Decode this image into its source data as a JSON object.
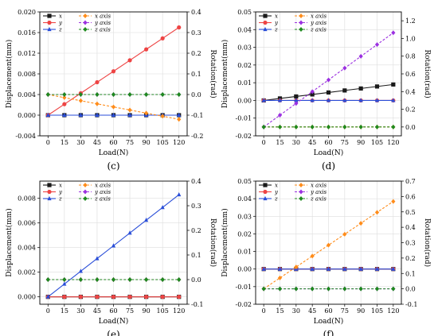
{
  "figure": {
    "panels": [
      "c",
      "d",
      "e",
      "f"
    ]
  },
  "legend": {
    "solid": [
      "x",
      "y",
      "z"
    ],
    "dashed": [
      "x axis",
      "y axis",
      "z axis"
    ],
    "colors": {
      "x": "#1a1a1a",
      "y": "#ee4444",
      "z": "#2a4ed8",
      "xr": "#ff8c1a",
      "yr": "#9b30e0",
      "zr": "#1e8a1e"
    },
    "markers": {
      "x": "square",
      "y": "circle",
      "z": "triangle",
      "xr": "diamond",
      "yr": "diamond",
      "zr": "diamond"
    }
  },
  "chart_data": [
    {
      "type": "line",
      "label": "(c)",
      "x": [
        0,
        15,
        30,
        45,
        60,
        75,
        90,
        105,
        120
      ],
      "xlabel": "Load(N)",
      "ylabel": "Displacement(mm)",
      "y2label": "Rotation(rad)",
      "ylim": [
        -0.004,
        0.02
      ],
      "yticks": [
        "-0.004",
        "0.000",
        "0.004",
        "0.008",
        "0.012",
        "0.016",
        "0.020"
      ],
      "y2lim": [
        -0.2,
        0.4
      ],
      "y2ticks": [
        "-0.2",
        "-0.1",
        "0.0",
        "0.1",
        "0.2",
        "0.3",
        "0.4"
      ],
      "grid": true,
      "series": [
        {
          "name": "x",
          "axis": "left",
          "style": "solid",
          "key": "x",
          "values": [
            0,
            0,
            0,
            0,
            0,
            0,
            0,
            0,
            0
          ]
        },
        {
          "name": "y",
          "axis": "left",
          "style": "solid",
          "key": "y",
          "values": [
            0,
            0.00213,
            0.00425,
            0.00638,
            0.0085,
            0.01063,
            0.01275,
            0.01488,
            0.017
          ]
        },
        {
          "name": "z",
          "axis": "left",
          "style": "solid",
          "key": "z",
          "values": [
            0,
            0,
            0,
            0,
            0,
            0,
            0,
            0,
            0
          ]
        },
        {
          "name": "x axis",
          "axis": "right",
          "style": "dashed",
          "key": "xr",
          "values": [
            0,
            -0.015,
            -0.03,
            -0.045,
            -0.06,
            -0.075,
            -0.09,
            -0.105,
            -0.12
          ]
        },
        {
          "name": "y axis",
          "axis": "right",
          "style": "dashed",
          "key": "yr",
          "values": [
            0,
            0,
            0,
            0,
            0,
            0,
            0,
            0,
            0
          ]
        },
        {
          "name": "z axis",
          "axis": "right",
          "style": "dashed",
          "key": "zr",
          "values": [
            0,
            0,
            0,
            0,
            0,
            0,
            0,
            0,
            0
          ]
        }
      ]
    },
    {
      "type": "line",
      "label": "(d)",
      "x": [
        0,
        15,
        30,
        45,
        60,
        75,
        90,
        105,
        120
      ],
      "xlabel": "Load(N)",
      "ylabel": "Displacement(mm)",
      "y2label": "Rotation(rad)",
      "ylim": [
        -0.02,
        0.05
      ],
      "yticks": [
        "-0.02",
        "-0.01",
        "0.00",
        "0.01",
        "0.02",
        "0.03",
        "0.04",
        "0.05"
      ],
      "y2lim": [
        -0.1,
        1.3
      ],
      "y2ticks": [
        "0.0",
        "0.2",
        "0.4",
        "0.6",
        "0.8",
        "1.0",
        "1.2"
      ],
      "grid": true,
      "series": [
        {
          "name": "x",
          "axis": "left",
          "style": "solid",
          "key": "x",
          "values": [
            0,
            0.00113,
            0.00225,
            0.00338,
            0.0045,
            0.00563,
            0.00675,
            0.00788,
            0.009
          ]
        },
        {
          "name": "y",
          "axis": "left",
          "style": "solid",
          "key": "y",
          "values": [
            0,
            0,
            0,
            0,
            0,
            0,
            0,
            0,
            0
          ]
        },
        {
          "name": "z",
          "axis": "left",
          "style": "solid",
          "key": "z",
          "values": [
            0,
            0,
            0,
            0,
            0,
            0,
            0,
            0,
            0
          ]
        },
        {
          "name": "x axis",
          "axis": "right",
          "style": "dashed",
          "key": "xr",
          "values": [
            0,
            0,
            0,
            0,
            0,
            0,
            0,
            0,
            0
          ]
        },
        {
          "name": "y axis",
          "axis": "right",
          "style": "dashed",
          "key": "yr",
          "values": [
            0,
            0.133,
            0.266,
            0.399,
            0.532,
            0.665,
            0.798,
            0.931,
            1.064
          ]
        },
        {
          "name": "z axis",
          "axis": "right",
          "style": "dashed",
          "key": "zr",
          "values": [
            0,
            0,
            0,
            0,
            0,
            0,
            0,
            0,
            0
          ]
        }
      ]
    },
    {
      "type": "line",
      "label": "(e)",
      "x": [
        0,
        15,
        30,
        45,
        60,
        75,
        90,
        105,
        120
      ],
      "xlabel": "Load(N)",
      "ylabel": "Displacement(mm)",
      "y2label": "Rotation(rad)",
      "ylim": [
        -0.0006,
        0.0094
      ],
      "yticks": [
        "0.000",
        "0.002",
        "0.004",
        "0.006",
        "0.008"
      ],
      "ytickvals": [
        0,
        0.002,
        0.004,
        0.006,
        0.008
      ],
      "y2lim": [
        -0.1,
        0.4
      ],
      "y2ticks": [
        "-0.1",
        "0.0",
        "0.1",
        "0.2",
        "0.3",
        "0.4"
      ],
      "grid": true,
      "series": [
        {
          "name": "x",
          "axis": "left",
          "style": "solid",
          "key": "x",
          "values": [
            0,
            0,
            0,
            0,
            0,
            0,
            0,
            0,
            0
          ]
        },
        {
          "name": "y",
          "axis": "left",
          "style": "solid",
          "key": "y",
          "values": [
            0,
            0,
            0,
            0,
            0,
            0,
            0,
            0,
            0
          ]
        },
        {
          "name": "z",
          "axis": "left",
          "style": "solid",
          "key": "z",
          "values": [
            0,
            0.00104,
            0.00208,
            0.00311,
            0.00415,
            0.00519,
            0.00623,
            0.00726,
            0.0083
          ]
        },
        {
          "name": "x axis",
          "axis": "right",
          "style": "dashed",
          "key": "xr",
          "values": [
            0,
            0,
            0,
            0,
            0,
            0,
            0,
            0,
            0
          ]
        },
        {
          "name": "y axis",
          "axis": "right",
          "style": "dashed",
          "key": "yr",
          "values": [
            0,
            0,
            0,
            0,
            0,
            0,
            0,
            0,
            0
          ]
        },
        {
          "name": "z axis",
          "axis": "right",
          "style": "dashed",
          "key": "zr",
          "values": [
            0,
            0,
            0,
            0,
            0,
            0,
            0,
            0,
            0
          ]
        }
      ]
    },
    {
      "type": "line",
      "label": "(f)",
      "x": [
        0,
        15,
        30,
        45,
        60,
        75,
        90,
        105,
        120
      ],
      "xlabel": "Load(N)",
      "ylabel": "Displacement(mm)",
      "y2label": "Rotation(rad)",
      "ylim": [
        -0.02,
        0.05
      ],
      "yticks": [
        "-0.02",
        "-0.01",
        "0.00",
        "0.01",
        "0.02",
        "0.03",
        "0.04",
        "0.05"
      ],
      "y2lim": [
        -0.1,
        0.7
      ],
      "y2ticks": [
        "-0.1",
        "0.0",
        "0.1",
        "0.2",
        "0.3",
        "0.4",
        "0.5",
        "0.6",
        "0.7"
      ],
      "grid": true,
      "series": [
        {
          "name": "x",
          "axis": "left",
          "style": "solid",
          "key": "x",
          "values": [
            0,
            0,
            0,
            0,
            0,
            0,
            0,
            0,
            0
          ]
        },
        {
          "name": "y",
          "axis": "left",
          "style": "solid",
          "key": "y",
          "values": [
            0,
            0,
            0,
            0,
            0,
            0,
            0,
            0,
            0
          ]
        },
        {
          "name": "z",
          "axis": "left",
          "style": "solid",
          "key": "z",
          "values": [
            0,
            0,
            0,
            0,
            0,
            0,
            0,
            0,
            0
          ]
        },
        {
          "name": "x axis",
          "axis": "right",
          "style": "dashed",
          "key": "xr",
          "values": [
            0,
            0.071,
            0.142,
            0.213,
            0.284,
            0.355,
            0.426,
            0.497,
            0.568
          ]
        },
        {
          "name": "y axis",
          "axis": "right",
          "style": "dashed",
          "key": "yr",
          "values": [
            0,
            0,
            0,
            0,
            0,
            0,
            0,
            0,
            0
          ]
        },
        {
          "name": "z axis",
          "axis": "right",
          "style": "dashed",
          "key": "zr",
          "values": [
            0,
            0,
            0,
            0,
            0,
            0,
            0,
            0,
            0
          ]
        }
      ]
    }
  ]
}
